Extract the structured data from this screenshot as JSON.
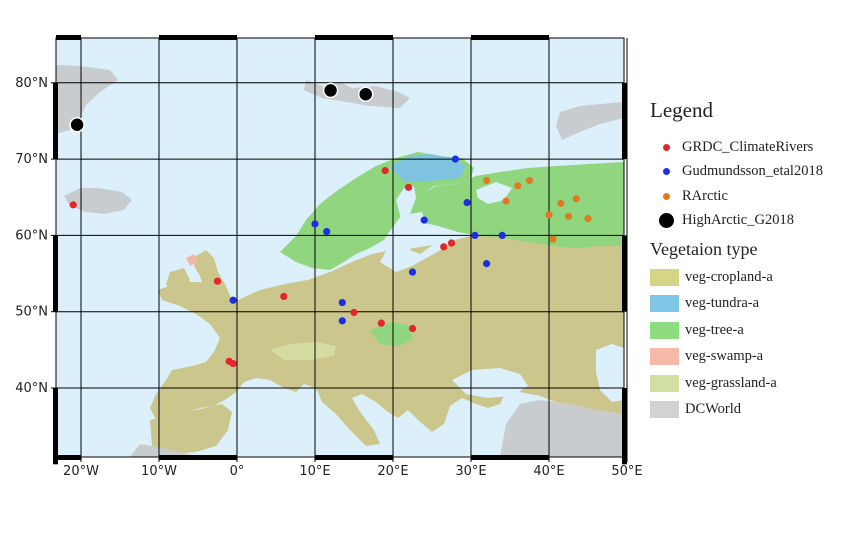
{
  "map": {
    "x_ticks": [
      "20°W",
      "10°W",
      "0°",
      "10°E",
      "20°E",
      "30°E",
      "40°E",
      "50°E"
    ],
    "y_ticks": [
      "40°N",
      "50°N",
      "60°N",
      "70°N",
      "80°N"
    ],
    "colors": {
      "ocean": "#dbf0fa",
      "cropland": "#cbc68c",
      "tree": "#90d67e",
      "tundra": "#7ec3df",
      "grassland": "#d5dca2",
      "swamp": "#f4b8a8",
      "dcworld": "#c9cccf",
      "grid": "#000000"
    }
  },
  "legend": {
    "title": "Legend",
    "items": [
      {
        "label": "GRDC_ClimateRivers",
        "color": "#e3262b",
        "icon": "small-dot"
      },
      {
        "label": "Gudmundsson_etal2018",
        "color": "#1d2fe0",
        "icon": "small-dot"
      },
      {
        "label": "RArctic",
        "color": "#e07a22",
        "icon": "small-dot"
      },
      {
        "label": "HighArctic_G2018",
        "color": "#000000",
        "icon": "large-dot"
      }
    ]
  },
  "vegetation": {
    "title": "Vegetaion type",
    "items": [
      {
        "label": "veg-cropland-a",
        "color": "#d6d485"
      },
      {
        "label": "veg-tundra-a",
        "color": "#7ec7e6"
      },
      {
        "label": "veg-tree-a",
        "color": "#8edc80"
      },
      {
        "label": "veg-swamp-a",
        "color": "#f6bba8"
      },
      {
        "label": "veg-grassland-a",
        "color": "#d3dea5"
      },
      {
        "label": "DCWorld",
        "color": "#d2d2d2"
      }
    ]
  },
  "stations": {
    "GRDC_ClimateRivers": [
      [
        -21,
        64
      ],
      [
        -2.5,
        54
      ],
      [
        6,
        52
      ],
      [
        -1,
        43.5
      ],
      [
        -0.5,
        43.2
      ],
      [
        15,
        49.9
      ],
      [
        18.5,
        48.5
      ],
      [
        22.5,
        47.8
      ],
      [
        19,
        68.5
      ],
      [
        22,
        66.3
      ],
      [
        26.5,
        58.5
      ],
      [
        27.5,
        59
      ]
    ],
    "Gudmundsson_etal2018": [
      [
        -0.5,
        51.5
      ],
      [
        13.5,
        51.2
      ],
      [
        13.5,
        48.8
      ],
      [
        10,
        61.5
      ],
      [
        11.5,
        60.5
      ],
      [
        24,
        62
      ],
      [
        28,
        70
      ],
      [
        29.5,
        64.3
      ],
      [
        30.5,
        60
      ],
      [
        34,
        60
      ],
      [
        32,
        56.3
      ],
      [
        22.5,
        55.2
      ]
    ],
    "RArctic": [
      [
        32,
        67.2
      ],
      [
        36,
        66.5
      ],
      [
        37.5,
        67.2
      ],
      [
        34.5,
        64.5
      ],
      [
        40,
        62.7
      ],
      [
        41.5,
        64.2
      ],
      [
        43.5,
        64.8
      ],
      [
        42.5,
        62.5
      ],
      [
        45,
        62.2
      ],
      [
        40.5,
        59.5
      ]
    ],
    "HighArctic_G2018": [
      [
        -20.5,
        74.5
      ],
      [
        12,
        79
      ],
      [
        16.5,
        78.5
      ]
    ]
  }
}
